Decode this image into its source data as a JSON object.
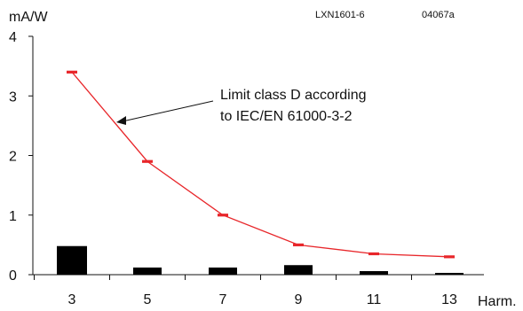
{
  "chart_data": {
    "type": "bar",
    "categories": [
      "3",
      "5",
      "7",
      "9",
      "11",
      "13"
    ],
    "series": [
      {
        "type": "bar",
        "values": [
          0.48,
          0.12,
          0.12,
          0.16,
          0.06,
          0.03
        ]
      },
      {
        "type": "line",
        "values": [
          3.4,
          1.9,
          1.0,
          0.5,
          0.35,
          0.3
        ]
      }
    ],
    "ylabel": "mA/W",
    "xlabel": "Harm.",
    "ylim": [
      0,
      4
    ],
    "yticks": [
      "0",
      "1",
      "2",
      "3",
      "4"
    ],
    "annotation": {
      "line1": "Limit class D according",
      "line2": "to IEC/EN 61000-3-2"
    },
    "top_labels": {
      "left": "LXN1601-6",
      "right": "04067a"
    },
    "colors": {
      "bars": "#000000",
      "line": "#e8262a",
      "axis": "#111111"
    }
  }
}
